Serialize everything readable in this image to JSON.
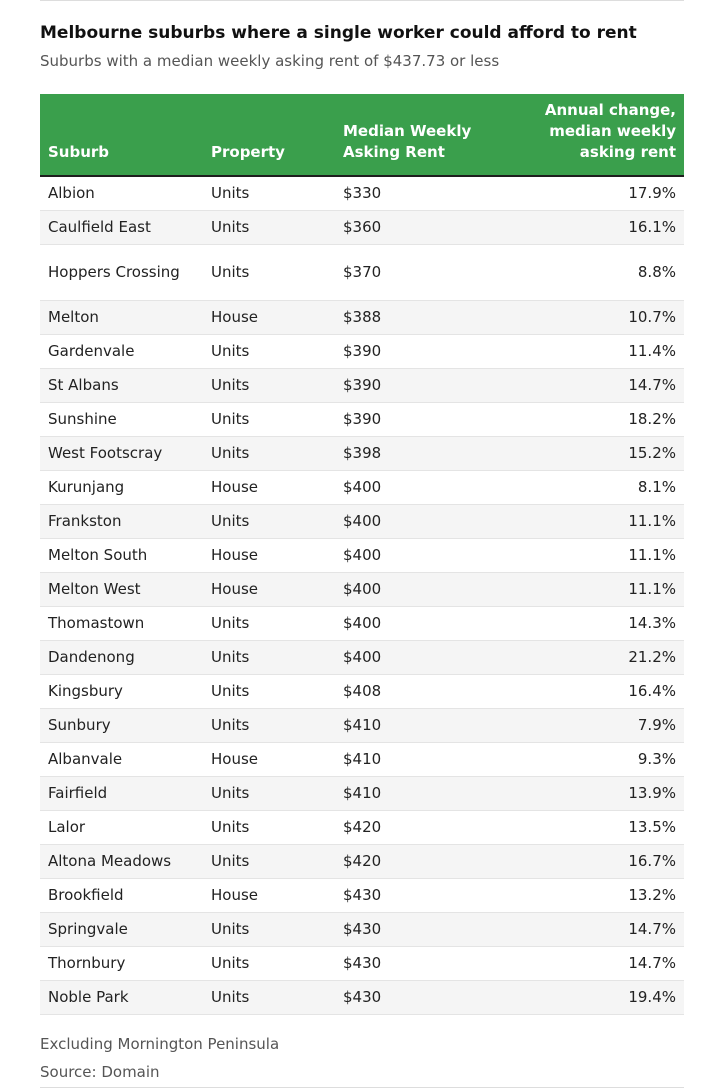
{
  "chart_data": {
    "type": "table",
    "title": "Melbourne suburbs where a single worker could afford to rent",
    "subtitle": "Suburbs with a median weekly asking rent of $437.73 or less",
    "columns": [
      "Suburb",
      "Property",
      "Median Weekly Asking Rent",
      "Annual change, median weekly asking rent"
    ],
    "rows": [
      {
        "suburb": "Albion",
        "property": "Units",
        "rent": "$330",
        "change": "17.9%"
      },
      {
        "suburb": "Caulfield East",
        "property": "Units",
        "rent": "$360",
        "change": "16.1%"
      },
      {
        "suburb": "Hoppers Crossing",
        "property": "Units",
        "rent": "$370",
        "change": "8.8%"
      },
      {
        "suburb": "Melton",
        "property": "House",
        "rent": "$388",
        "change": "10.7%"
      },
      {
        "suburb": "Gardenvale",
        "property": "Units",
        "rent": "$390",
        "change": "11.4%"
      },
      {
        "suburb": "St Albans",
        "property": "Units",
        "rent": "$390",
        "change": "14.7%"
      },
      {
        "suburb": "Sunshine",
        "property": "Units",
        "rent": "$390",
        "change": "18.2%"
      },
      {
        "suburb": "West Footscray",
        "property": "Units",
        "rent": "$398",
        "change": "15.2%"
      },
      {
        "suburb": "Kurunjang",
        "property": "House",
        "rent": "$400",
        "change": "8.1%"
      },
      {
        "suburb": "Frankston",
        "property": "Units",
        "rent": "$400",
        "change": "11.1%"
      },
      {
        "suburb": "Melton South",
        "property": "House",
        "rent": "$400",
        "change": "11.1%"
      },
      {
        "suburb": "Melton West",
        "property": "House",
        "rent": "$400",
        "change": "11.1%"
      },
      {
        "suburb": "Thomastown",
        "property": "Units",
        "rent": "$400",
        "change": "14.3%"
      },
      {
        "suburb": "Dandenong",
        "property": "Units",
        "rent": "$400",
        "change": "21.2%"
      },
      {
        "suburb": "Kingsbury",
        "property": "Units",
        "rent": "$408",
        "change": "16.4%"
      },
      {
        "suburb": "Sunbury",
        "property": "Units",
        "rent": "$410",
        "change": "7.9%"
      },
      {
        "suburb": "Albanvale",
        "property": "House",
        "rent": "$410",
        "change": "9.3%"
      },
      {
        "suburb": "Fairfield",
        "property": "Units",
        "rent": "$410",
        "change": "13.9%"
      },
      {
        "suburb": "Lalor",
        "property": "Units",
        "rent": "$420",
        "change": "13.5%"
      },
      {
        "suburb": "Altona Meadows",
        "property": "Units",
        "rent": "$420",
        "change": "16.7%"
      },
      {
        "suburb": "Brookfield",
        "property": "House",
        "rent": "$430",
        "change": "13.2%"
      },
      {
        "suburb": "Springvale",
        "property": "Units",
        "rent": "$430",
        "change": "14.7%"
      },
      {
        "suburb": "Thornbury",
        "property": "Units",
        "rent": "$430",
        "change": "14.7%"
      },
      {
        "suburb": "Noble Park",
        "property": "Units",
        "rent": "$430",
        "change": "19.4%"
      }
    ],
    "notes": [
      "Excluding Mornington Peninsula",
      "Source: Domain"
    ],
    "colors": {
      "header_background": "#3a9f4c",
      "header_text": "#ffffff",
      "stripe": "#f5f5f5"
    }
  }
}
